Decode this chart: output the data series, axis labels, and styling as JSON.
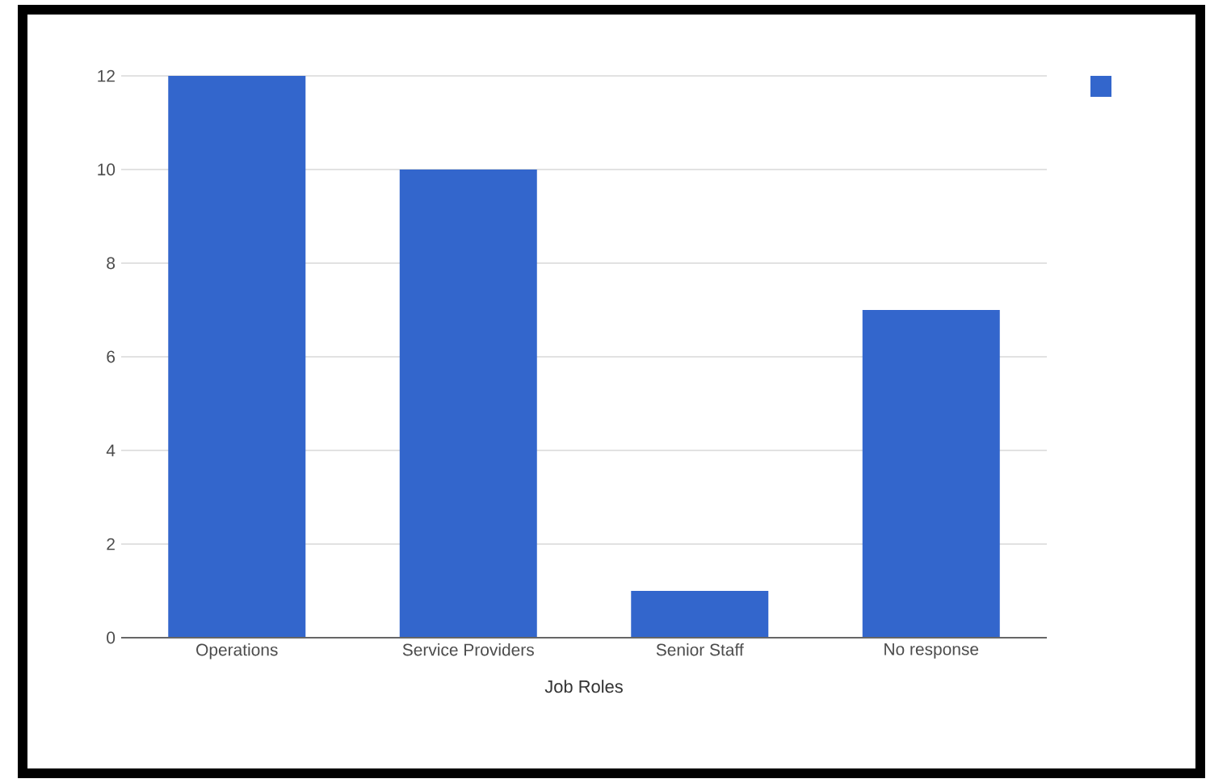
{
  "chart_data": {
    "type": "bar",
    "xlabel": "Job Roles",
    "categories": [
      "Operations",
      "Service Providers",
      "Senior Staff",
      "No response"
    ],
    "series": [
      {
        "color": "#3366cc",
        "values": [
          12,
          10,
          1,
          7
        ]
      }
    ],
    "ylim": [
      0,
      12
    ],
    "yticks": [
      0,
      2,
      4,
      6,
      8,
      10,
      12
    ],
    "grid": "y"
  }
}
